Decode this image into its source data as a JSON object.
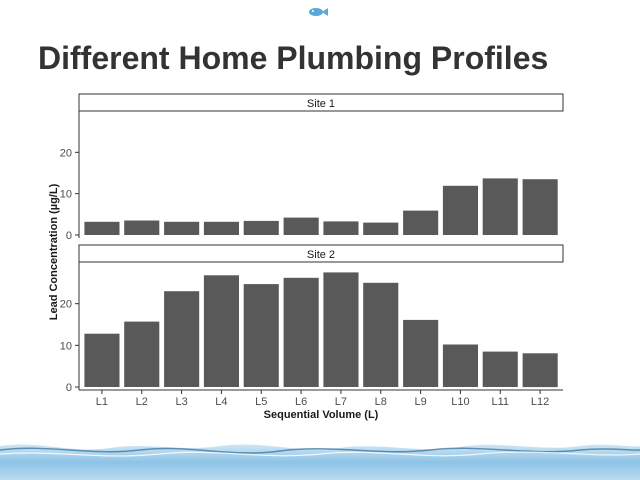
{
  "slide": {
    "title": "Different Home Plumbing Profiles"
  },
  "colors": {
    "bar": "#595959",
    "title": "#333333",
    "axis": "#333333",
    "panel_border": "#333333",
    "water": "#7fb3d9"
  },
  "icons": {
    "logo": "fish-logo-icon",
    "footer": "water-splash-decoration"
  },
  "chart_data": {
    "type": "bar",
    "facets": [
      "Site 1",
      "Site 2"
    ],
    "categories": [
      "L1",
      "L2",
      "L3",
      "L4",
      "L5",
      "L6",
      "L7",
      "L8",
      "L9",
      "L10",
      "L11",
      "L12"
    ],
    "series": [
      {
        "name": "Site 1",
        "values": [
          3.2,
          3.5,
          3.2,
          3.2,
          3.4,
          4.2,
          3.3,
          3.0,
          5.9,
          11.9,
          13.7,
          13.5
        ]
      },
      {
        "name": "Site 2",
        "values": [
          12.8,
          15.7,
          23.0,
          26.8,
          24.7,
          26.2,
          27.5,
          25.0,
          16.1,
          10.2,
          8.5,
          8.1
        ]
      }
    ],
    "xlabel": "Sequential Volume (L)",
    "ylabel": "Lead Concentration (µg/L)",
    "ylim": [
      0,
      30
    ],
    "yticks": [
      0,
      10,
      20
    ],
    "grid": false
  }
}
